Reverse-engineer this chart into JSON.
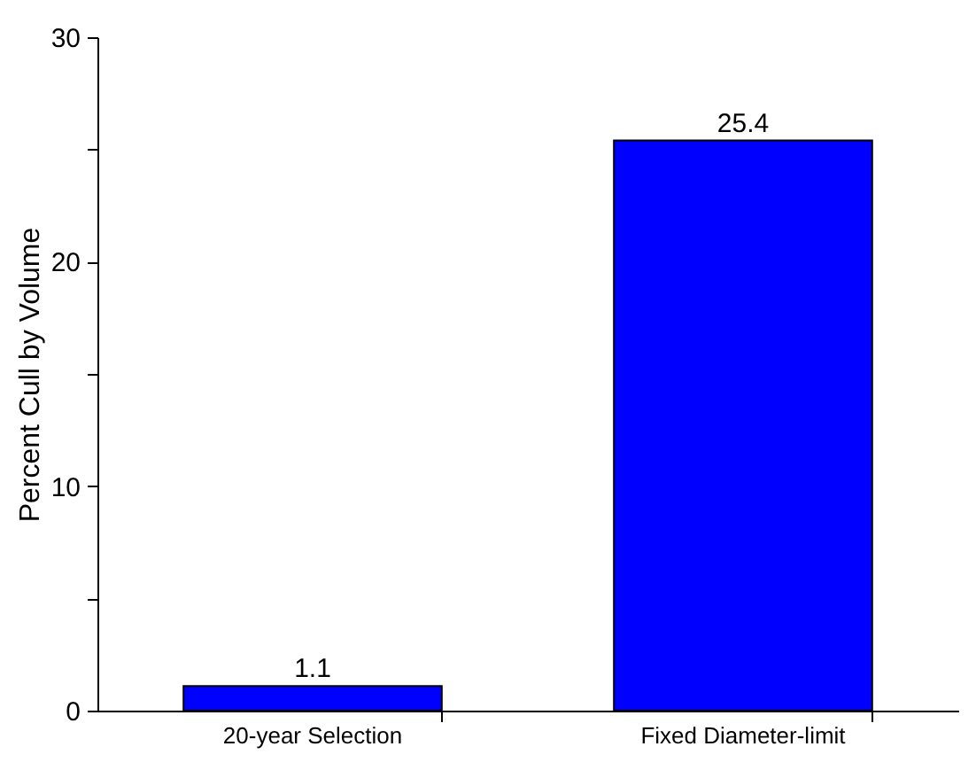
{
  "chart_data": {
    "type": "bar",
    "ylabel": "Percent Cull by Volume",
    "categories": [
      "20-year Selection",
      "Fixed Diameter-limit"
    ],
    "values": [
      1.1,
      25.4
    ],
    "color": "#0000ff",
    "ylim": [
      0,
      30
    ],
    "yticks": [
      0,
      {
        "value": 5,
        "label": null
      },
      10,
      {
        "value": 15,
        "label": null
      },
      20,
      {
        "value": 25,
        "label": null
      },
      30
    ],
    "data_labels": true,
    "grid": false
  }
}
